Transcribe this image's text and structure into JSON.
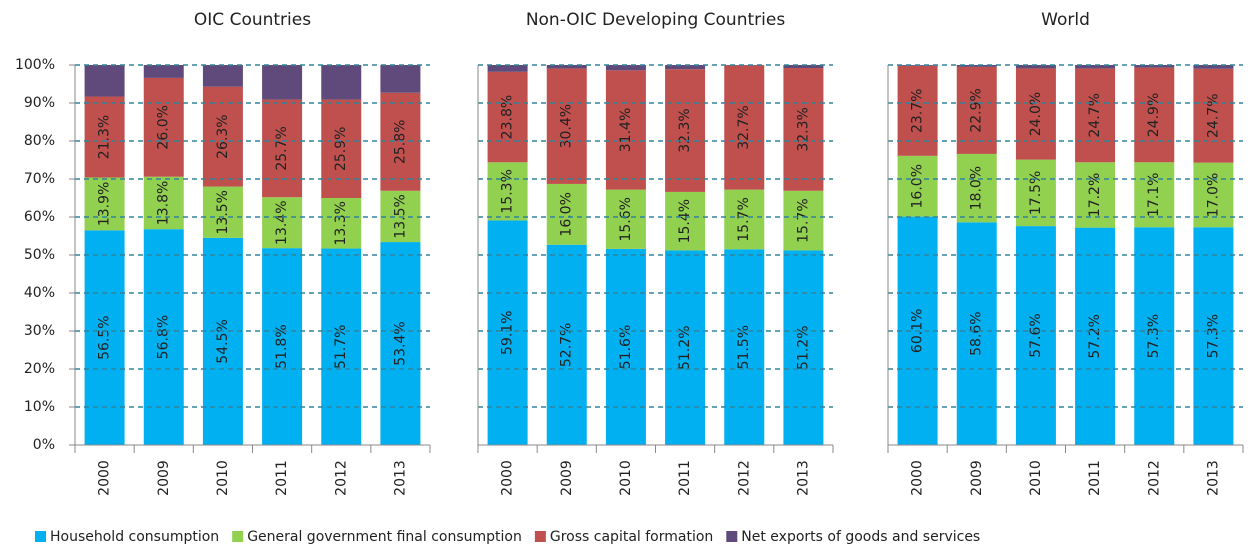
{
  "legend": [
    {
      "name": "Household consumption",
      "color": "#00b0f0"
    },
    {
      "name": "General government final consumption",
      "color": "#92d050"
    },
    {
      "name": "Gross capital formation",
      "color": "#c0504d"
    },
    {
      "name": "Net exports of goods and services",
      "color": "#604a7b"
    }
  ],
  "chart_data": [
    {
      "type": "stacked_bar",
      "title": "OIC Countries",
      "categories": [
        "2000",
        "2009",
        "2010",
        "2011",
        "2012",
        "2013"
      ],
      "ylim": [
        0,
        100
      ],
      "yticks": [
        {
          "value": 0,
          "label": "0%"
        },
        {
          "value": 10,
          "label": "10%"
        },
        {
          "value": 20,
          "label": "20%"
        },
        {
          "value": 30,
          "label": "30%"
        },
        {
          "value": 40,
          "label": "40%"
        },
        {
          "value": 50,
          "label": "50%"
        },
        {
          "value": 60,
          "label": "60%"
        },
        {
          "value": 70,
          "label": "70%"
        },
        {
          "value": 80,
          "label": "80%"
        },
        {
          "value": 90,
          "label": "90%"
        },
        {
          "value": 100,
          "label": "100%"
        }
      ],
      "grid": true,
      "series": [
        {
          "values": [
            56.5,
            56.8,
            54.5,
            51.8,
            51.7,
            53.4
          ],
          "value_labels": [
            "56.5%",
            "56.8%",
            "54.5%",
            "51.8%",
            "51.7%",
            "53.4%"
          ]
        },
        {
          "values": [
            13.9,
            13.8,
            13.5,
            13.4,
            13.3,
            13.5
          ],
          "value_labels": [
            "13.9%",
            "13.8%",
            "13.5%",
            "13.4%",
            "13.3%",
            "13.5%"
          ]
        },
        {
          "values": [
            21.3,
            26.0,
            26.3,
            25.7,
            25.9,
            25.8
          ],
          "value_labels": [
            "21.3%",
            "26.0%",
            "26.3%",
            "25.7%",
            "25.9%",
            "25.8%"
          ]
        },
        {
          "values": [
            8.3,
            3.4,
            5.7,
            9.1,
            9.1,
            7.3
          ]
        }
      ]
    },
    {
      "type": "stacked_bar",
      "title": "Non-OIC Developing Countries",
      "categories": [
        "2000",
        "2009",
        "2010",
        "2011",
        "2012",
        "2013"
      ],
      "ylim": [
        0,
        100
      ],
      "yticks": [
        0,
        10,
        20,
        30,
        40,
        50,
        60,
        70,
        80,
        90,
        100
      ],
      "grid": true,
      "series": [
        {
          "values": [
            59.1,
            52.7,
            51.6,
            51.2,
            51.5,
            51.2
          ],
          "value_labels": [
            "59.1%",
            "52.7%",
            "51.6%",
            "51.2%",
            "51.5%",
            "51.2%"
          ]
        },
        {
          "values": [
            15.3,
            16.0,
            15.6,
            15.4,
            15.7,
            15.7
          ],
          "value_labels": [
            "15.3%",
            "16.0%",
            "15.6%",
            "15.4%",
            "15.7%",
            "15.7%"
          ]
        },
        {
          "values": [
            23.8,
            30.4,
            31.4,
            32.3,
            32.7,
            32.3
          ],
          "value_labels": [
            "23.8%",
            "30.4%",
            "31.4%",
            "32.3%",
            "32.7%",
            "32.3%"
          ]
        },
        {
          "values": [
            1.8,
            0.9,
            1.4,
            1.1,
            0.1,
            0.8
          ]
        }
      ]
    },
    {
      "type": "stacked_bar",
      "title": "World",
      "categories": [
        "2000",
        "2009",
        "2010",
        "2011",
        "2012",
        "2013"
      ],
      "ylim": [
        0,
        100
      ],
      "yticks": [
        0,
        10,
        20,
        30,
        40,
        50,
        60,
        70,
        80,
        90,
        100
      ],
      "grid": true,
      "series": [
        {
          "values": [
            60.1,
            58.6,
            57.6,
            57.2,
            57.3,
            57.3
          ],
          "value_labels": [
            "60.1%",
            "58.6%",
            "57.6%",
            "57.2%",
            "57.3%",
            "57.3%"
          ]
        },
        {
          "values": [
            16.0,
            18.0,
            17.5,
            17.2,
            17.1,
            17.0
          ],
          "value_labels": [
            "16.0%",
            "18.0%",
            "17.5%",
            "17.2%",
            "17.1%",
            "17.0%"
          ]
        },
        {
          "values": [
            23.7,
            22.9,
            24.0,
            24.7,
            24.9,
            24.7
          ],
          "value_labels": [
            "23.7%",
            "22.9%",
            "24.0%",
            "24.7%",
            "24.9%",
            "24.7%"
          ]
        },
        {
          "values": [
            0.2,
            0.5,
            0.9,
            0.9,
            0.7,
            1.0
          ]
        }
      ]
    }
  ]
}
